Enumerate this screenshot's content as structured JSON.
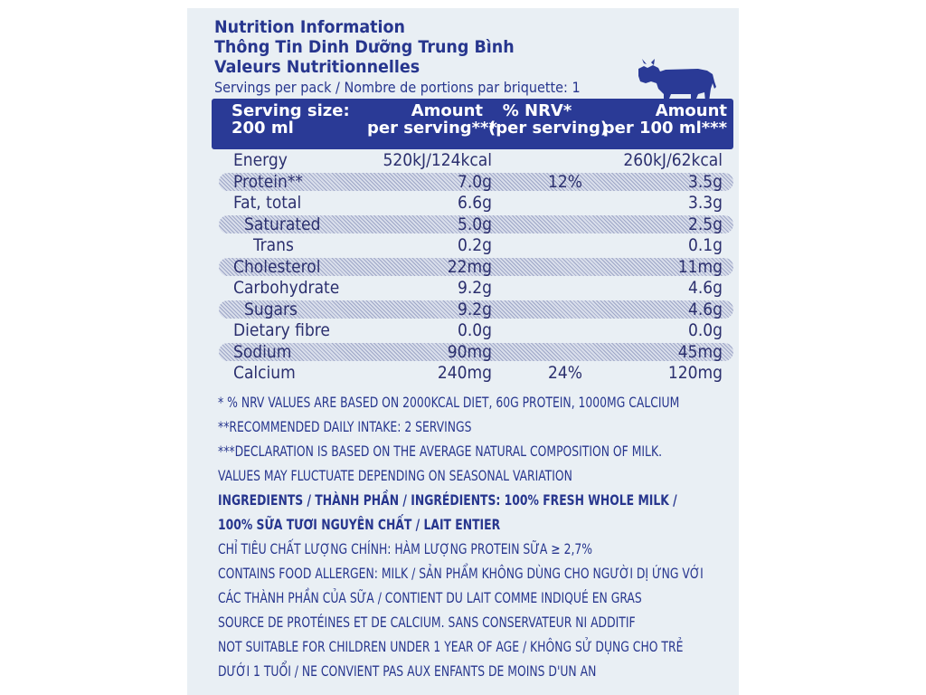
{
  "titles": {
    "line1": "Nutrition Information",
    "line2": "Thông Tin Dinh Dưỡng Trung Bình",
    "line3": "Valeurs Nutritionnelles"
  },
  "servings": "Servings per pack / Nombre de portions par briquette: 1",
  "header": {
    "serving_size_1": "Serving size:",
    "serving_size_2": "200 ml",
    "amount_1": "Amount",
    "amount_2": "per serving***",
    "nrv_1": "% NRV*",
    "nrv_2": "(per serving)",
    "per100_1": "Amount",
    "per100_2": "per 100 ml***"
  },
  "rows": [
    {
      "name": "Energy",
      "amount": "520kJ/124kcal",
      "nrv": "",
      "per100": "260kJ/62kcal",
      "shaded": false
    },
    {
      "name": "Protein**",
      "amount": "7.0g",
      "nrv": "12%",
      "per100": "3.5g",
      "shaded": true
    },
    {
      "name": "Fat, total",
      "amount": "6.6g",
      "nrv": "",
      "per100": "3.3g",
      "shaded": false
    },
    {
      "name": "Saturated",
      "amount": "5.0g",
      "nrv": "",
      "per100": "2.5g",
      "shaded": true
    },
    {
      "name": "Trans",
      "amount": "0.2g",
      "nrv": "",
      "per100": "0.1g",
      "shaded": false
    },
    {
      "name": "Cholesterol",
      "amount": "22mg",
      "nrv": "",
      "per100": "11mg",
      "shaded": true
    },
    {
      "name": "Carbohydrate",
      "amount": "9.2g",
      "nrv": "",
      "per100": "4.6g",
      "shaded": false
    },
    {
      "name": "Sugars",
      "amount": "9.2g",
      "nrv": "",
      "per100": "4.6g",
      "shaded": true
    },
    {
      "name": "Dietary fibre",
      "amount": "0.0g",
      "nrv": "",
      "per100": "0.0g",
      "shaded": false
    },
    {
      "name": "Sodium",
      "amount": "90mg",
      "nrv": "",
      "per100": "45mg",
      "shaded": true
    },
    {
      "name": "Calcium",
      "amount": "240mg",
      "nrv": "24%",
      "per100": "120mg",
      "shaded": false
    }
  ],
  "notes": [
    {
      "text": "* % NRV VALUES ARE BASED ON 2000KCAL DIET, 60G PROTEIN, 1000MG CALCIUM",
      "bold": false
    },
    {
      "text": "**RECOMMENDED DAILY INTAKE: 2 SERVINGS",
      "bold": false
    },
    {
      "text": "***DECLARATION IS BASED ON THE AVERAGE NATURAL COMPOSITION OF MILK.",
      "bold": false
    },
    {
      "text": "VALUES MAY FLUCTUATE DEPENDING ON SEASONAL VARIATION",
      "bold": false
    },
    {
      "text": "INGREDIENTS / THÀNH PHẦN / INGRÉDIENTS: 100% FRESH WHOLE MILK /",
      "bold": true
    },
    {
      "text": "100% SỮA TƯƠI NGUYÊN CHẤT / LAIT ENTIER",
      "bold": true
    },
    {
      "text": "CHỈ TIÊU CHẤT LƯỢNG CHÍNH: HÀM LƯỢNG PROTEIN SỮA ≥ 2,7%",
      "bold": false
    },
    {
      "text": "CONTAINS FOOD ALLERGEN: MILK / SẢN PHẨM KHÔNG DÙNG CHO NGƯỜI DỊ ỨNG VỚI",
      "bold": false
    },
    {
      "text": "CÁC THÀNH PHẦN CỦA SỮA / CONTIENT DU LAIT COMME INDIQUÉ EN GRAS",
      "bold": false
    },
    {
      "text": "SOURCE DE PROTÉINES ET DE CALCIUM. SANS CONSERVATEUR NI ADDITIF",
      "bold": false
    },
    {
      "text": "NOT SUITABLE FOR CHILDREN UNDER 1 YEAR OF AGE / KHÔNG SỬ DỤNG CHO TRẺ",
      "bold": false
    },
    {
      "text": "DƯỚI 1 TUỔI / NE CONVIENT PAS AUX ENFANTS DE MOINS D'UN AN",
      "bold": false
    }
  ],
  "icons": {
    "cow": "cow-icon"
  },
  "colors": {
    "brand_blue": "#2a3a96",
    "text_blue": "#27368e",
    "background": "#e9eff4"
  }
}
